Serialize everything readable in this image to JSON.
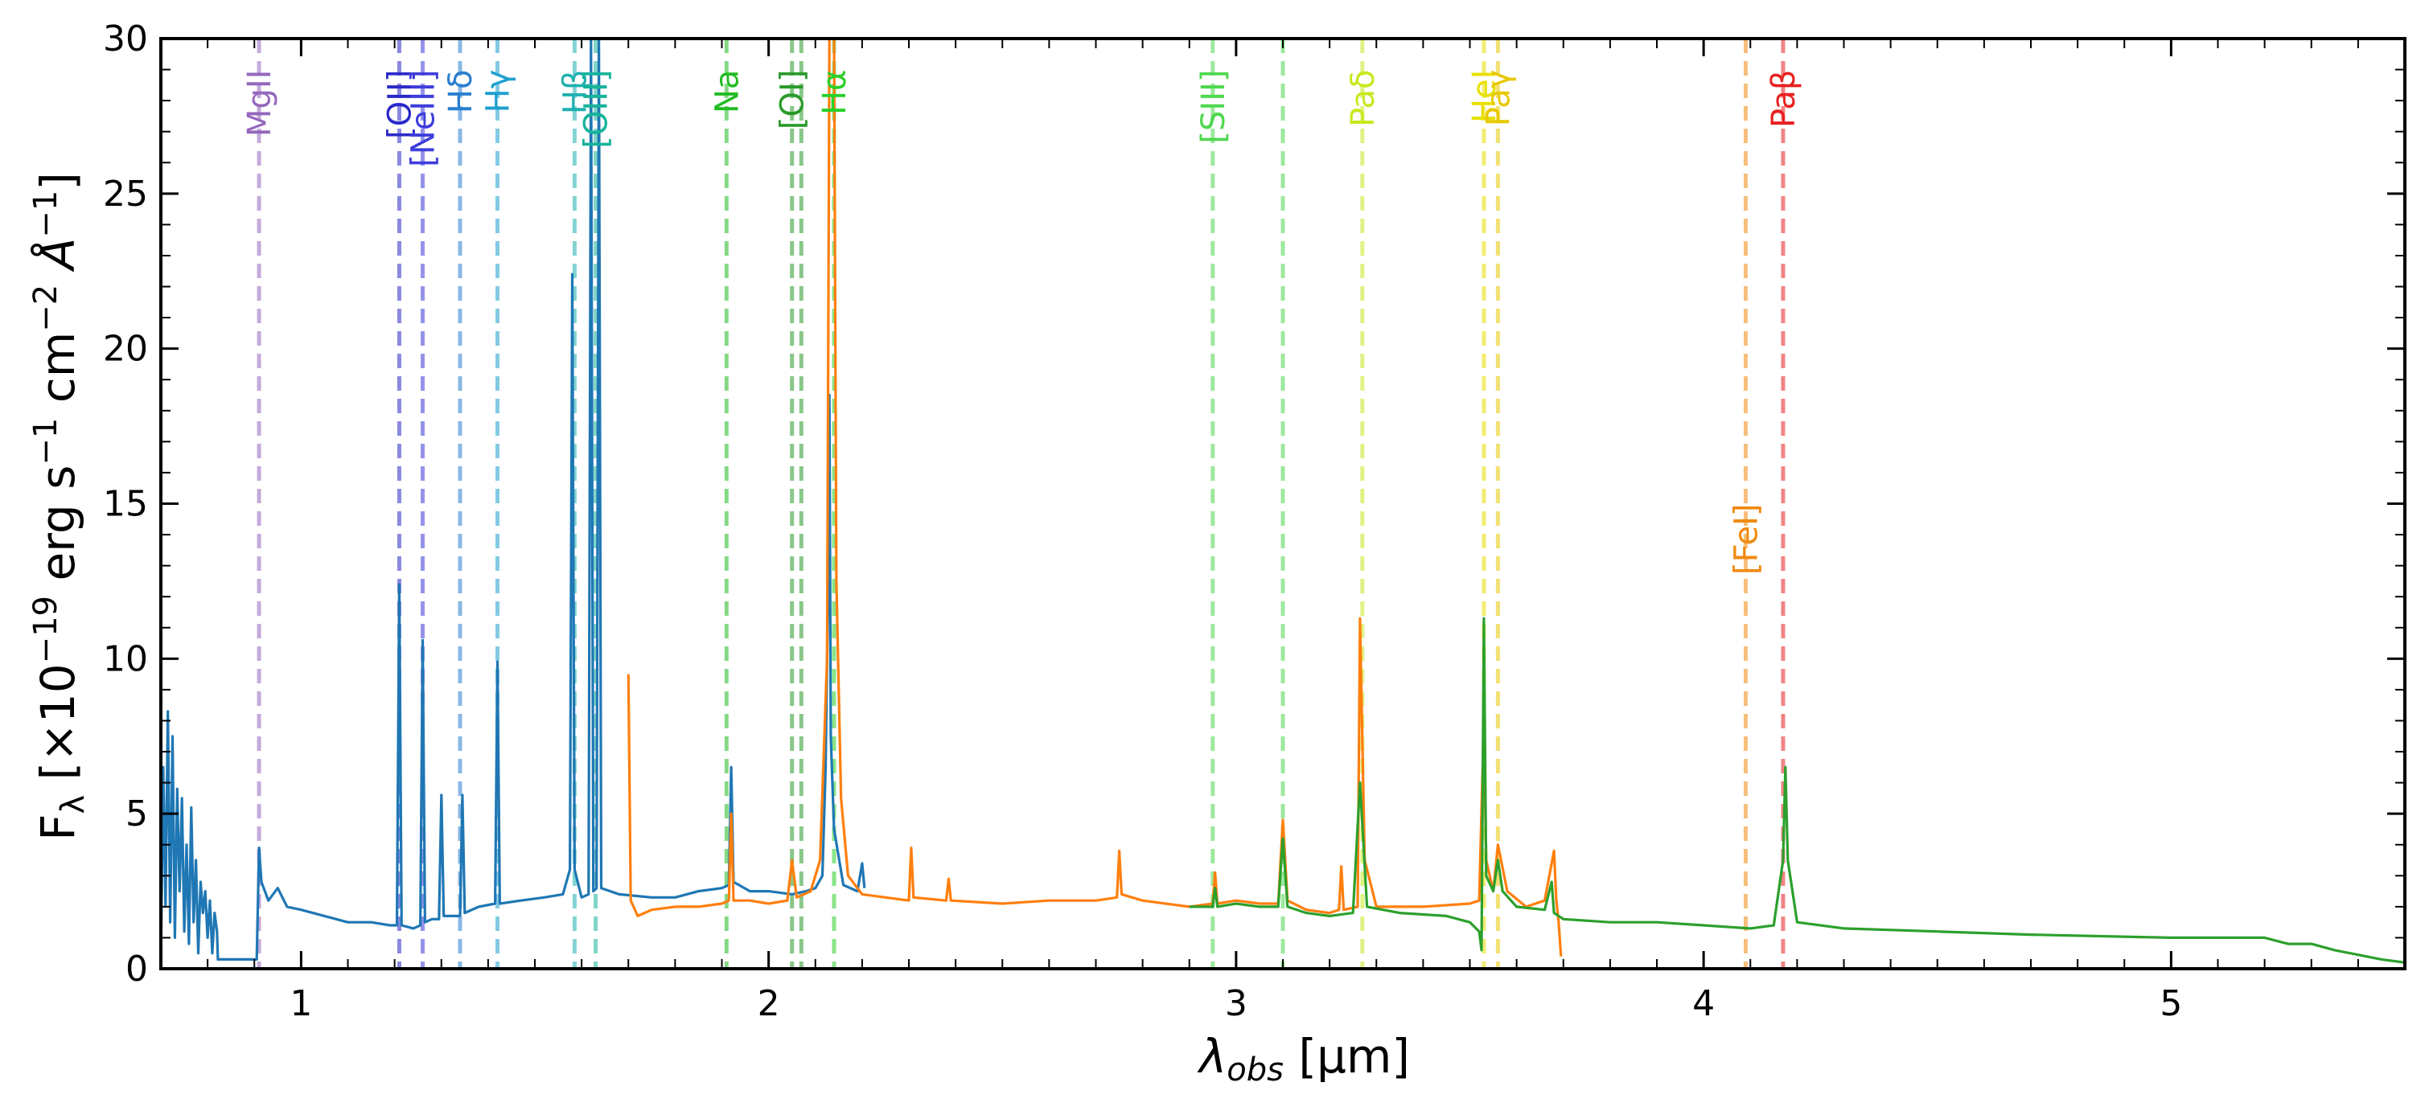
{
  "chart_data": {
    "type": "line",
    "xlabel": "λ_obs [μm]",
    "xlabel_parts": {
      "symbol": "λ",
      "sub": "obs",
      "unit": " [μm]"
    },
    "ylabel": "F_λ [×10^−19 erg s^−1 cm^−2 Å^−1]",
    "ylabel_parts": {
      "f": "F",
      "f_sub": "λ",
      "a": " [×10",
      "e1": "−19",
      "b": " erg s",
      "e2": "−1",
      "c": " cm",
      "e3": "−2",
      "d": " Å",
      "e4": "−1",
      "end": "]"
    },
    "xlim": [
      0.7,
      5.5
    ],
    "ylim": [
      0,
      30
    ],
    "xticks": [
      1,
      2,
      3,
      4,
      5
    ],
    "xtick_labels": [
      "1",
      "2",
      "3",
      "4",
      "5"
    ],
    "yticks": [
      0,
      5,
      10,
      15,
      20,
      25,
      30
    ],
    "ytick_labels": [
      "0",
      "5",
      "10",
      "15",
      "20",
      "25",
      "30"
    ],
    "grid": false,
    "series": [
      {
        "color": "#1f77b4",
        "points": [
          [
            0.7,
            0.2
          ],
          [
            0.705,
            6.5
          ],
          [
            0.71,
            2.0
          ],
          [
            0.715,
            8.3
          ],
          [
            0.72,
            1.5
          ],
          [
            0.725,
            7.5
          ],
          [
            0.73,
            1.0
          ],
          [
            0.735,
            5.8
          ],
          [
            0.74,
            2.5
          ],
          [
            0.745,
            5.5
          ],
          [
            0.75,
            1.2
          ],
          [
            0.755,
            4.0
          ],
          [
            0.76,
            0.8
          ],
          [
            0.765,
            5.2
          ],
          [
            0.77,
            1.5
          ],
          [
            0.775,
            3.5
          ],
          [
            0.78,
            0.5
          ],
          [
            0.785,
            2.8
          ],
          [
            0.79,
            1.8
          ],
          [
            0.795,
            2.5
          ],
          [
            0.8,
            1.0
          ],
          [
            0.805,
            2.2
          ],
          [
            0.81,
            0.5
          ],
          [
            0.815,
            1.8
          ],
          [
            0.82,
            1.2
          ],
          [
            0.822,
            0.3
          ],
          [
            0.905,
            0.3
          ],
          [
            0.91,
            3.9
          ],
          [
            0.915,
            2.8
          ],
          [
            0.93,
            2.2
          ],
          [
            0.95,
            2.6
          ],
          [
            0.97,
            2.0
          ],
          [
            1.0,
            1.9
          ],
          [
            1.05,
            1.7
          ],
          [
            1.1,
            1.5
          ],
          [
            1.15,
            1.5
          ],
          [
            1.19,
            1.4
          ],
          [
            1.205,
            1.4
          ],
          [
            1.21,
            12.4
          ],
          [
            1.215,
            1.4
          ],
          [
            1.24,
            1.3
          ],
          [
            1.255,
            1.4
          ],
          [
            1.26,
            10.6
          ],
          [
            1.265,
            1.5
          ],
          [
            1.28,
            1.6
          ],
          [
            1.295,
            1.6
          ],
          [
            1.3,
            5.6
          ],
          [
            1.305,
            1.7
          ],
          [
            1.34,
            1.7
          ],
          [
            1.345,
            5.6
          ],
          [
            1.35,
            1.8
          ],
          [
            1.38,
            2.0
          ],
          [
            1.415,
            2.1
          ],
          [
            1.42,
            9.9
          ],
          [
            1.425,
            2.1
          ],
          [
            1.47,
            2.2
          ],
          [
            1.52,
            2.3
          ],
          [
            1.56,
            2.4
          ],
          [
            1.575,
            3.2
          ],
          [
            1.58,
            22.4
          ],
          [
            1.585,
            3.2
          ],
          [
            1.6,
            2.3
          ],
          [
            1.615,
            2.4
          ],
          [
            1.62,
            30
          ],
          [
            1.625,
            2.5
          ],
          [
            1.632,
            2.6
          ],
          [
            1.637,
            30
          ],
          [
            1.642,
            2.6
          ],
          [
            1.68,
            2.4
          ],
          [
            1.75,
            2.3
          ],
          [
            1.8,
            2.3
          ],
          [
            1.85,
            2.5
          ],
          [
            1.9,
            2.6
          ],
          [
            1.915,
            2.7
          ],
          [
            1.92,
            6.5
          ],
          [
            1.925,
            2.8
          ],
          [
            1.96,
            2.5
          ],
          [
            2.0,
            2.5
          ],
          [
            2.05,
            2.4
          ],
          [
            2.08,
            2.5
          ],
          [
            2.1,
            2.6
          ],
          [
            2.115,
            3.0
          ],
          [
            2.122,
            6.5
          ],
          [
            2.127,
            12.0
          ],
          [
            2.13,
            18.5
          ],
          [
            2.133,
            7.5
          ],
          [
            2.14,
            4.5
          ],
          [
            2.16,
            2.7
          ],
          [
            2.19,
            2.5
          ],
          [
            2.2,
            3.4
          ],
          [
            2.205,
            2.6
          ]
        ]
      },
      {
        "color": "#ff7f0e",
        "points": [
          [
            1.7,
            9.5
          ],
          [
            1.705,
            2.2
          ],
          [
            1.72,
            1.7
          ],
          [
            1.75,
            1.9
          ],
          [
            1.8,
            2.0
          ],
          [
            1.85,
            2.0
          ],
          [
            1.9,
            2.1
          ],
          [
            1.915,
            2.2
          ],
          [
            1.92,
            5.0
          ],
          [
            1.925,
            2.2
          ],
          [
            1.96,
            2.2
          ],
          [
            2.0,
            2.1
          ],
          [
            2.04,
            2.2
          ],
          [
            2.05,
            3.5
          ],
          [
            2.06,
            2.3
          ],
          [
            2.09,
            2.5
          ],
          [
            2.11,
            3.5
          ],
          [
            2.125,
            10.0
          ],
          [
            2.13,
            30
          ],
          [
            2.14,
            30
          ],
          [
            2.145,
            12.5
          ],
          [
            2.155,
            5.5
          ],
          [
            2.17,
            3.0
          ],
          [
            2.2,
            2.4
          ],
          [
            2.3,
            2.2
          ],
          [
            2.305,
            3.9
          ],
          [
            2.31,
            2.3
          ],
          [
            2.38,
            2.2
          ],
          [
            2.385,
            2.9
          ],
          [
            2.39,
            2.2
          ],
          [
            2.5,
            2.1
          ],
          [
            2.6,
            2.2
          ],
          [
            2.7,
            2.2
          ],
          [
            2.745,
            2.3
          ],
          [
            2.75,
            3.8
          ],
          [
            2.755,
            2.4
          ],
          [
            2.8,
            2.2
          ],
          [
            2.9,
            2.0
          ],
          [
            2.95,
            2.1
          ],
          [
            2.955,
            3.1
          ],
          [
            2.96,
            2.1
          ],
          [
            3.0,
            2.2
          ],
          [
            3.05,
            2.1
          ],
          [
            3.09,
            2.1
          ],
          [
            3.1,
            4.8
          ],
          [
            3.11,
            2.2
          ],
          [
            3.15,
            1.9
          ],
          [
            3.2,
            1.8
          ],
          [
            3.22,
            1.9
          ],
          [
            3.225,
            3.3
          ],
          [
            3.23,
            1.9
          ],
          [
            3.26,
            2.0
          ],
          [
            3.265,
            11.3
          ],
          [
            3.275,
            3.5
          ],
          [
            3.3,
            2.0
          ],
          [
            3.4,
            2.0
          ],
          [
            3.5,
            2.1
          ],
          [
            3.52,
            2.2
          ],
          [
            3.53,
            8.0
          ],
          [
            3.535,
            3.5
          ],
          [
            3.55,
            2.5
          ],
          [
            3.56,
            4.0
          ],
          [
            3.58,
            2.5
          ],
          [
            3.62,
            2.0
          ],
          [
            3.66,
            2.2
          ],
          [
            3.68,
            3.8
          ],
          [
            3.685,
            2.2
          ],
          [
            3.69,
            1.5
          ],
          [
            3.695,
            0.4
          ]
        ]
      },
      {
        "color": "#2ca02c",
        "points": [
          [
            2.9,
            2.0
          ],
          [
            2.95,
            2.0
          ],
          [
            2.955,
            2.6
          ],
          [
            2.96,
            2.0
          ],
          [
            3.0,
            2.1
          ],
          [
            3.05,
            2.0
          ],
          [
            3.09,
            2.0
          ],
          [
            3.1,
            4.2
          ],
          [
            3.11,
            2.0
          ],
          [
            3.15,
            1.8
          ],
          [
            3.2,
            1.7
          ],
          [
            3.25,
            1.8
          ],
          [
            3.265,
            6.0
          ],
          [
            3.28,
            2.0
          ],
          [
            3.35,
            1.8
          ],
          [
            3.45,
            1.7
          ],
          [
            3.5,
            1.5
          ],
          [
            3.52,
            1.2
          ],
          [
            3.525,
            0.6
          ],
          [
            3.53,
            11.3
          ],
          [
            3.535,
            3.0
          ],
          [
            3.55,
            2.5
          ],
          [
            3.56,
            3.5
          ],
          [
            3.57,
            2.5
          ],
          [
            3.6,
            2.0
          ],
          [
            3.66,
            1.9
          ],
          [
            3.675,
            2.8
          ],
          [
            3.68,
            1.8
          ],
          [
            3.7,
            1.6
          ],
          [
            3.8,
            1.5
          ],
          [
            3.9,
            1.5
          ],
          [
            4.0,
            1.4
          ],
          [
            4.1,
            1.3
          ],
          [
            4.15,
            1.4
          ],
          [
            4.17,
            3.5
          ],
          [
            4.175,
            6.5
          ],
          [
            4.18,
            3.5
          ],
          [
            4.2,
            1.5
          ],
          [
            4.3,
            1.3
          ],
          [
            4.5,
            1.2
          ],
          [
            4.7,
            1.1
          ],
          [
            5.0,
            1.0
          ],
          [
            5.2,
            1.0
          ],
          [
            5.25,
            0.8
          ],
          [
            5.3,
            0.8
          ],
          [
            5.35,
            0.6
          ],
          [
            5.45,
            0.3
          ],
          [
            5.5,
            0.2
          ]
        ]
      }
    ],
    "emission_lines": [
      {
        "x": 0.91,
        "label": "MgII",
        "color": "#9467bd",
        "label_y": 29
      },
      {
        "x": 1.21,
        "label": "[OII]",
        "color": "#2929c8",
        "label_y": 29
      },
      {
        "x": 1.26,
        "label": "[NeIII]",
        "color": "#3e3edb",
        "label_y": 29
      },
      {
        "x": 1.34,
        "label": "Hδ",
        "color": "#2a7fcf",
        "label_y": 29
      },
      {
        "x": 1.42,
        "label": "Hγ",
        "color": "#1f9fcf",
        "label_y": 29
      },
      {
        "x": 1.585,
        "label": "Hβ",
        "color": "#1fb0b0",
        "label_y": 29
      },
      {
        "x": 1.63,
        "label": "[OIII]",
        "color": "#17b39a",
        "label_y": 29
      },
      {
        "x": 1.91,
        "label": "Na",
        "color": "#22bb22",
        "label_y": 29
      },
      {
        "x": 2.05,
        "label": "[OI]",
        "color": "#2a9a2a",
        "label_y": 29
      },
      {
        "x": 2.07,
        "label": "",
        "color": "#2a9a2a",
        "label_y": 29
      },
      {
        "x": 2.14,
        "label": "Hα",
        "color": "#2ad02a",
        "label_y": 29
      },
      {
        "x": 2.95,
        "label": "[SIII]",
        "color": "#4ed84e",
        "label_y": 29
      },
      {
        "x": 3.1,
        "label": "",
        "color": "#4ed84e",
        "label_y": 29
      },
      {
        "x": 3.27,
        "label": "Paδ",
        "color": "#c8e81e",
        "label_y": 29
      },
      {
        "x": 3.53,
        "label": "HeI",
        "color": "#e8e000",
        "label_y": 29
      },
      {
        "x": 3.56,
        "label": "Paγ",
        "color": "#e8c800",
        "label_y": 29
      },
      {
        "x": 4.09,
        "label": "[FeI]",
        "color": "#f08a10",
        "label_y": 15
      },
      {
        "x": 4.17,
        "label": "Paβ",
        "color": "#e82020",
        "label_y": 29
      }
    ]
  }
}
